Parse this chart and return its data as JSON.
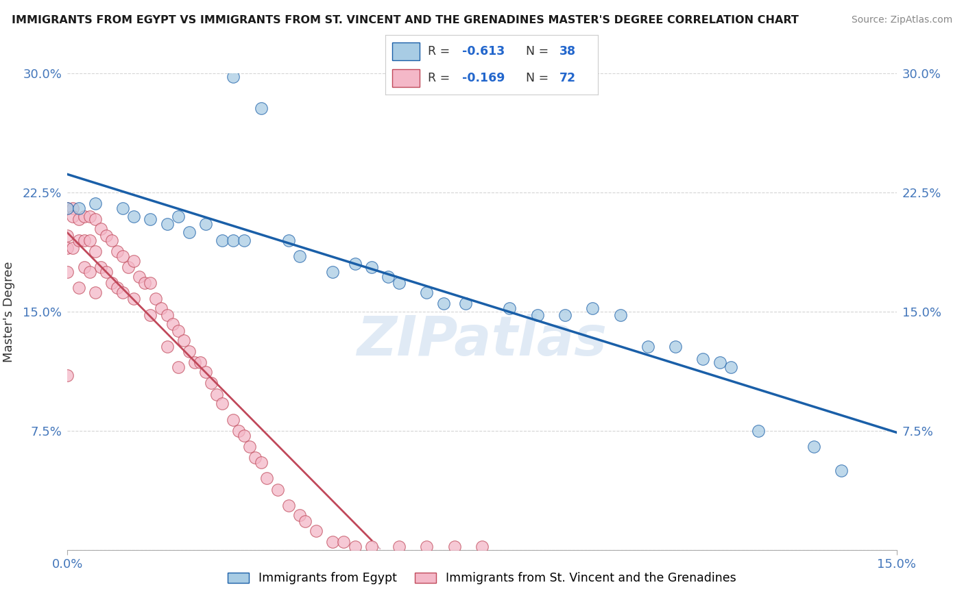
{
  "title": "IMMIGRANTS FROM EGYPT VS IMMIGRANTS FROM ST. VINCENT AND THE GRENADINES MASTER'S DEGREE CORRELATION CHART",
  "source": "Source: ZipAtlas.com",
  "ylabel": "Master's Degree",
  "xlim": [
    0.0,
    0.15
  ],
  "ylim": [
    0.0,
    0.3
  ],
  "yticks": [
    0.0,
    0.075,
    0.15,
    0.225,
    0.3
  ],
  "ytick_labels_left": [
    "",
    "7.5%",
    "15.0%",
    "22.5%",
    "30.0%"
  ],
  "ytick_labels_right": [
    "",
    "7.5%",
    "15.0%",
    "22.5%",
    "30.0%"
  ],
  "xtick_labels": [
    "0.0%",
    "15.0%"
  ],
  "xtick_positions": [
    0.0,
    0.15
  ],
  "legend_label_blue": "Immigrants from Egypt",
  "legend_label_pink": "Immigrants from St. Vincent and the Grenadines",
  "legend_r_blue": "-0.613",
  "legend_n_blue": "38",
  "legend_r_pink": "-0.169",
  "legend_n_pink": "72",
  "color_blue": "#a8cce4",
  "color_pink": "#f4b8c8",
  "color_line_blue": "#1a5fa8",
  "color_line_pink": "#c0485a",
  "color_diag": "#d4a8b8",
  "watermark_text": "ZIPatlas",
  "background_color": "#ffffff",
  "grid_color": "#d0d0d0",
  "blue_scatter_x": [
    0.03,
    0.035,
    0.0,
    0.002,
    0.005,
    0.01,
    0.012,
    0.015,
    0.018,
    0.02,
    0.022,
    0.025,
    0.028,
    0.03,
    0.032,
    0.04,
    0.042,
    0.048,
    0.052,
    0.055,
    0.058,
    0.06,
    0.065,
    0.068,
    0.072,
    0.08,
    0.085,
    0.09,
    0.095,
    0.1,
    0.105,
    0.11,
    0.115,
    0.118,
    0.12,
    0.125,
    0.135,
    0.14
  ],
  "blue_scatter_y": [
    0.298,
    0.278,
    0.215,
    0.215,
    0.218,
    0.215,
    0.21,
    0.208,
    0.205,
    0.21,
    0.2,
    0.205,
    0.195,
    0.195,
    0.195,
    0.195,
    0.185,
    0.175,
    0.18,
    0.178,
    0.172,
    0.168,
    0.162,
    0.155,
    0.155,
    0.152,
    0.148,
    0.148,
    0.152,
    0.148,
    0.128,
    0.128,
    0.12,
    0.118,
    0.115,
    0.075,
    0.065,
    0.05
  ],
  "pink_scatter_x": [
    0.0,
    0.0,
    0.0,
    0.0,
    0.0,
    0.001,
    0.001,
    0.001,
    0.002,
    0.002,
    0.002,
    0.003,
    0.003,
    0.003,
    0.004,
    0.004,
    0.004,
    0.005,
    0.005,
    0.005,
    0.006,
    0.006,
    0.007,
    0.007,
    0.008,
    0.008,
    0.009,
    0.009,
    0.01,
    0.01,
    0.011,
    0.012,
    0.012,
    0.013,
    0.014,
    0.015,
    0.015,
    0.016,
    0.017,
    0.018,
    0.018,
    0.019,
    0.02,
    0.02,
    0.021,
    0.022,
    0.023,
    0.024,
    0.025,
    0.026,
    0.027,
    0.028,
    0.03,
    0.031,
    0.032,
    0.033,
    0.034,
    0.035,
    0.036,
    0.038,
    0.04,
    0.042,
    0.043,
    0.045,
    0.048,
    0.05,
    0.052,
    0.055,
    0.06,
    0.065,
    0.07,
    0.075
  ],
  "pink_scatter_y": [
    0.215,
    0.198,
    0.19,
    0.175,
    0.11,
    0.215,
    0.21,
    0.19,
    0.208,
    0.195,
    0.165,
    0.21,
    0.195,
    0.178,
    0.21,
    0.195,
    0.175,
    0.208,
    0.188,
    0.162,
    0.202,
    0.178,
    0.198,
    0.175,
    0.195,
    0.168,
    0.188,
    0.165,
    0.185,
    0.162,
    0.178,
    0.182,
    0.158,
    0.172,
    0.168,
    0.168,
    0.148,
    0.158,
    0.152,
    0.148,
    0.128,
    0.142,
    0.138,
    0.115,
    0.132,
    0.125,
    0.118,
    0.118,
    0.112,
    0.105,
    0.098,
    0.092,
    0.082,
    0.075,
    0.072,
    0.065,
    0.058,
    0.055,
    0.045,
    0.038,
    0.028,
    0.022,
    0.018,
    0.012,
    0.005,
    0.005,
    0.002,
    0.002,
    0.002,
    0.002,
    0.002,
    0.002
  ]
}
